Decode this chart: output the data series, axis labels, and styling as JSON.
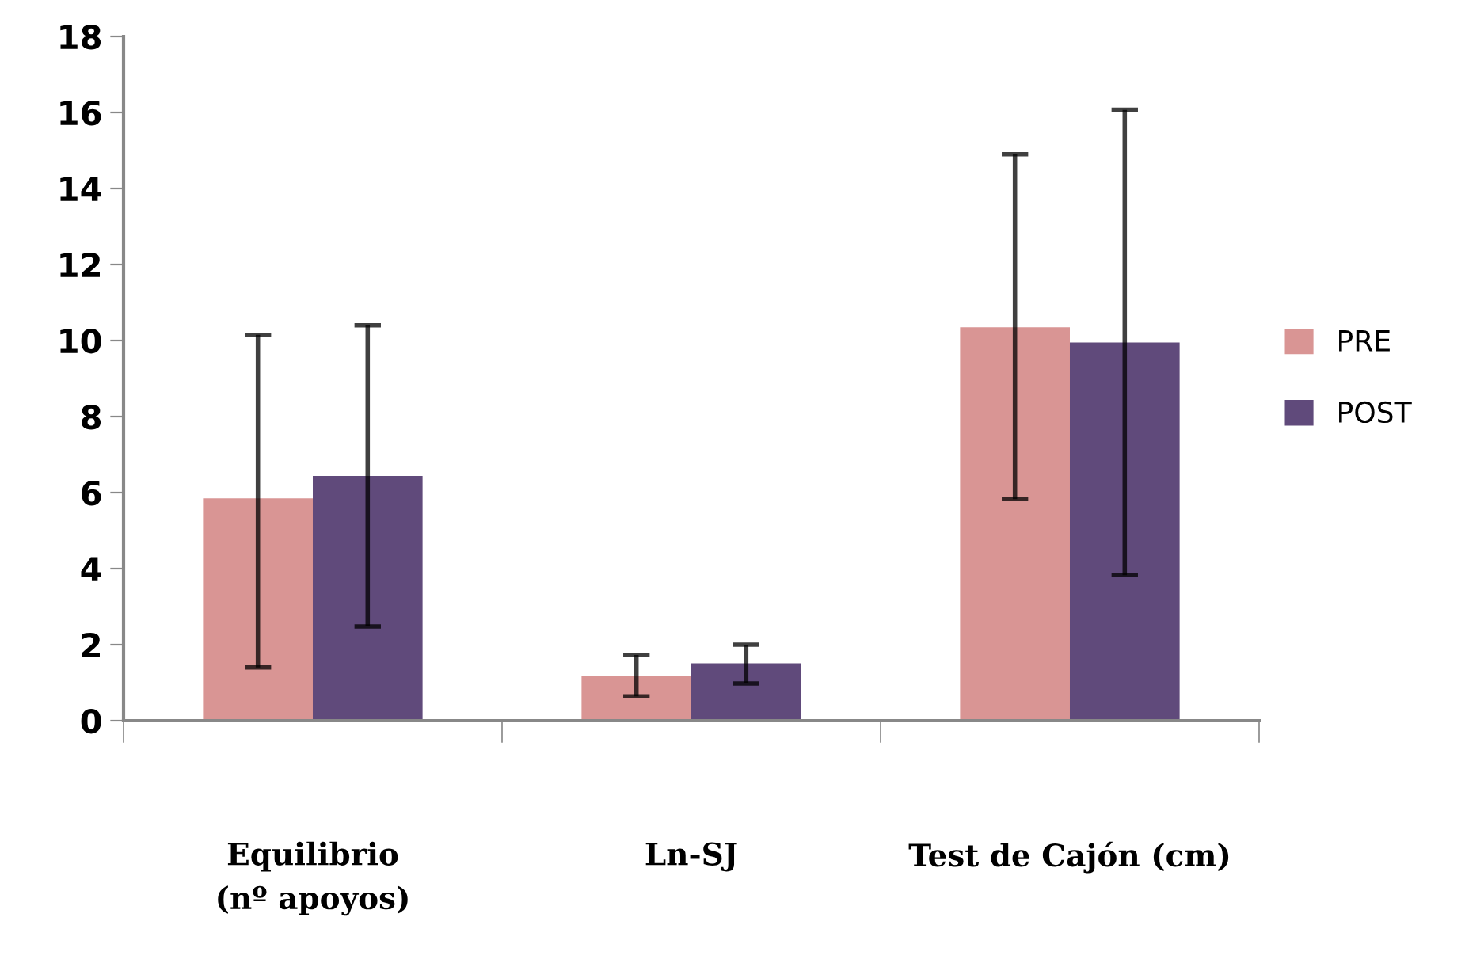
{
  "chart_data": {
    "type": "bar",
    "categories": [
      "Equilibrio\n(nº apoyos)",
      "Ln-SJ",
      "Test de Cajón (cm)"
    ],
    "series": [
      {
        "name": "PRE",
        "color": "#d99594",
        "values": [
          5.85,
          1.19,
          10.35
        ],
        "errors": [
          [
            1.4,
            10.15
          ],
          [
            0.64,
            1.73
          ],
          [
            5.83,
            14.9
          ]
        ]
      },
      {
        "name": "POST",
        "color": "#604a7b",
        "values": [
          6.44,
          1.51,
          9.95
        ],
        "errors": [
          [
            2.48,
            10.4
          ],
          [
            0.98,
            2.0
          ],
          [
            3.83,
            16.07
          ]
        ]
      }
    ],
    "ylim": [
      0,
      18
    ],
    "yticks": [
      0,
      2,
      4,
      6,
      8,
      10,
      12,
      14,
      16,
      18
    ],
    "grid": false,
    "legend": "right"
  }
}
